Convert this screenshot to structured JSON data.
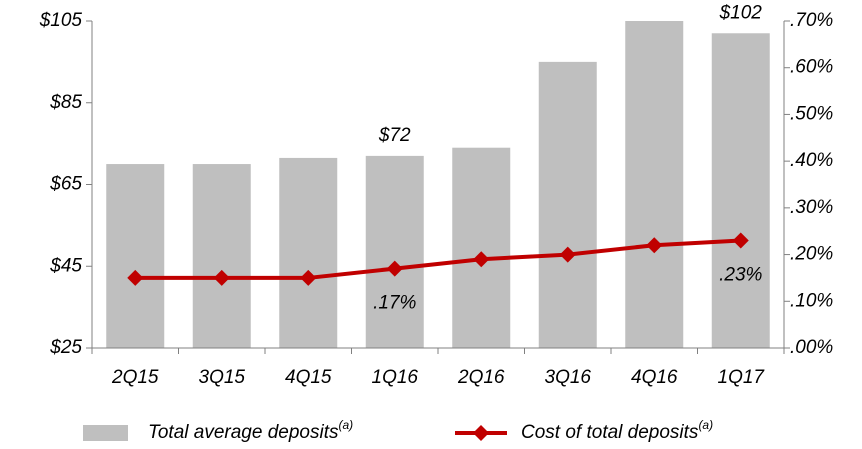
{
  "chart_data": {
    "type": "bar_line",
    "categories": [
      "2Q15",
      "3Q15",
      "4Q15",
      "1Q16",
      "2Q16",
      "3Q16",
      "4Q16",
      "1Q17"
    ],
    "series": [
      {
        "name": "Total average deposits",
        "note": "(a)",
        "type": "bar",
        "color": "#bfbfbf",
        "axis": "y",
        "values": [
          70,
          70,
          71.5,
          72,
          74,
          95,
          105,
          102
        ],
        "value_labels": [
          null,
          null,
          null,
          "$72",
          null,
          null,
          null,
          "$102"
        ]
      },
      {
        "name": "Cost of total deposits",
        "note": "(a)",
        "type": "line",
        "color": "#c00000",
        "axis": "y2",
        "values": [
          0.15,
          0.15,
          0.15,
          0.17,
          0.19,
          0.2,
          0.22,
          0.23
        ],
        "value_labels": [
          null,
          null,
          null,
          ".17%",
          null,
          null,
          null,
          ".23%"
        ]
      }
    ],
    "ylim": [
      25,
      105
    ],
    "yticks": [
      {
        "value": 25,
        "label": "$25"
      },
      {
        "value": 45,
        "label": "$45"
      },
      {
        "value": 65,
        "label": "$65"
      },
      {
        "value": 85,
        "label": "$85"
      },
      {
        "value": 105,
        "label": "$105"
      }
    ],
    "y2lim": [
      0,
      0.7
    ],
    "y2ticks": [
      {
        "value": 0,
        "label": ".00%"
      },
      {
        "value": 0.1,
        "label": ".10%"
      },
      {
        "value": 0.2,
        "label": ".20%"
      },
      {
        "value": 0.3,
        "label": ".30%"
      },
      {
        "value": 0.4,
        "label": ".40%"
      },
      {
        "value": 0.5,
        "label": ".50%"
      },
      {
        "value": 0.6,
        "label": ".60%"
      },
      {
        "value": 0.7,
        "label": ".70%"
      }
    ],
    "legend": "bottom",
    "grid": false
  }
}
